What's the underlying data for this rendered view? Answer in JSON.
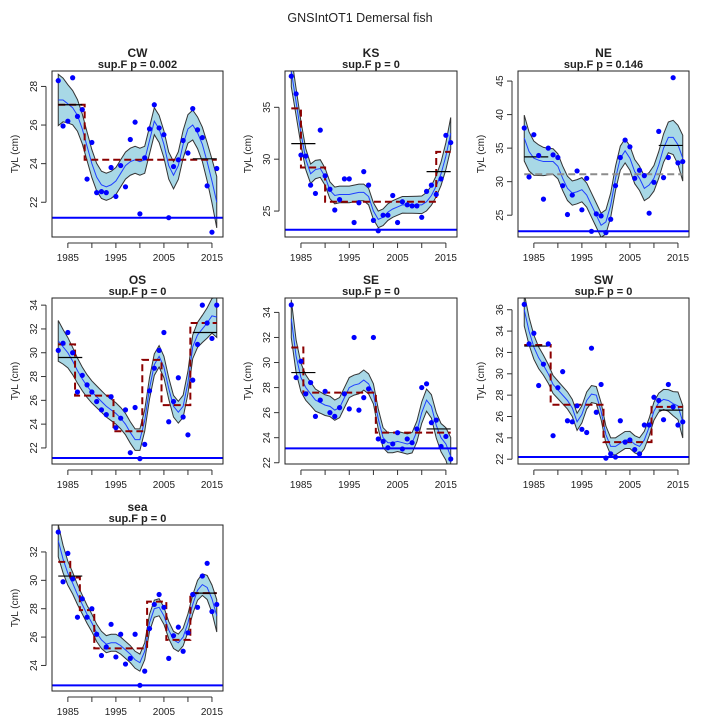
{
  "title": "GNSIntOT1 Demersal fish",
  "chart_data": [
    {
      "type": "line",
      "name": "CW",
      "subtitle": "sup.F p = 0.002",
      "ylabel": "TyL (cm)",
      "xlim": [
        1981.7,
        2017.3
      ],
      "ylim": [
        20.2,
        28.8
      ],
      "yticks": [
        22,
        24,
        26,
        28
      ],
      "xtick_labels": [
        "1985",
        "1995",
        "2005",
        "2015"
      ],
      "reference_line": 21.2,
      "points": [
        28.3,
        25.95,
        26.2,
        28.45,
        26.45,
        26.8,
        23.2,
        25.1,
        22.5,
        22.55,
        22.5,
        23.8,
        22.3,
        23.9,
        22.8,
        25.25,
        26.15,
        21.4,
        24.3,
        25.8,
        27.05,
        25.85,
        25.5,
        21.2,
        23.85,
        24.2,
        25.2,
        24.55,
        26.85,
        25.75,
        25.35,
        22.85,
        20.45,
        23.75
      ],
      "fit": [
        27.3,
        27.3,
        27.1,
        26.9,
        26.5,
        25.8,
        24.9,
        24.0,
        23.3,
        22.9,
        22.8,
        22.9,
        23.1,
        23.5,
        23.9,
        24.1,
        24.2,
        24.1,
        24.2,
        25.2,
        26.2,
        25.8,
        25.0,
        23.9,
        23.4,
        23.9,
        25.0,
        25.8,
        26.0,
        25.6,
        25.0,
        24.1,
        23.1,
        22.0
      ],
      "ci_halfwidth": 0.7,
      "breakpoint_steps": [
        [
          1983,
          1988.5,
          27.05
        ],
        [
          1988.5,
          2016,
          24.2
        ]
      ],
      "step_significant": true,
      "period_means": [
        [
          1983,
          1988,
          27.05
        ],
        [
          2011,
          2016,
          24.25
        ]
      ]
    },
    {
      "type": "line",
      "name": "KS",
      "subtitle": "sup.F p = 0",
      "ylabel": "TyL (cm)",
      "xlim": [
        1981.7,
        2017.3
      ],
      "ylim": [
        22.5,
        38.5
      ],
      "yticks": [
        25,
        30,
        35
      ],
      "xtick_labels": [
        "1985",
        "1995",
        "2005",
        "2015"
      ],
      "reference_line": 23.2,
      "points": [
        38.0,
        36.3,
        30.4,
        30.3,
        27.5,
        26.7,
        32.8,
        28.4,
        27.1,
        25.1,
        26.1,
        28.1,
        28.1,
        23.9,
        25.8,
        28.8,
        27.5,
        24.1,
        23.1,
        24.6,
        24.6,
        26.5,
        23.9,
        25.9,
        25.6,
        25.5,
        25.5,
        24.4,
        26.9,
        27.5,
        26.6,
        28.1,
        32.3,
        31.6
      ],
      "fit": [
        38.5,
        35.5,
        32.5,
        30.0,
        28.6,
        29.0,
        29.1,
        28.3,
        27.0,
        26.5,
        26.6,
        26.6,
        26.6,
        26.7,
        26.8,
        26.8,
        26.4,
        25.0,
        24.2,
        24.4,
        24.9,
        25.2,
        25.4,
        25.6,
        25.6,
        25.6,
        25.6,
        25.6,
        25.9,
        26.5,
        27.4,
        28.6,
        30.3,
        32.5
      ],
      "ci_halfwidth": 0.8,
      "breakpoint_steps": [
        [
          1983,
          1985,
          34.9
        ],
        [
          1985,
          1990,
          29.2
        ],
        [
          1990,
          2013,
          25.9
        ],
        [
          2013,
          2016,
          30.7
        ]
      ],
      "step_significant": true,
      "period_means": [
        [
          1983,
          1988,
          31.5
        ],
        [
          2011,
          2016,
          28.8
        ]
      ]
    },
    {
      "type": "line",
      "name": "NE",
      "subtitle": "sup.F p = 0.146",
      "ylabel": "TyL (cm)",
      "xlim": [
        1981.7,
        2017.3
      ],
      "ylim": [
        21.75,
        46.5
      ],
      "yticks": [
        25,
        30,
        35,
        40,
        45
      ],
      "xtick_labels": [
        "1985",
        "1995",
        "2005",
        "2015"
      ],
      "reference_line": 22.6,
      "points": [
        38.0,
        30.7,
        37.0,
        33.9,
        27.4,
        35.0,
        34.0,
        33.6,
        29.4,
        25.1,
        28.0,
        31.6,
        25.8,
        30.5,
        22.6,
        25.2,
        24.9,
        22.4,
        24.4,
        29.4,
        33.6,
        36.2,
        35.2,
        30.5,
        31.7,
        30.9,
        25.3,
        29.9,
        37.5,
        30.6,
        33.6,
        45.5,
        32.8,
        33.0
      ],
      "fit": [
        36.5,
        34.5,
        33.5,
        33.2,
        33.0,
        33.0,
        33.0,
        32.3,
        30.5,
        29.0,
        28.3,
        28.5,
        28.8,
        28.0,
        26.5,
        25.0,
        23.5,
        24.0,
        26.5,
        30.5,
        33.5,
        34.6,
        33.5,
        31.5,
        30.5,
        29.0,
        29.5,
        30.5,
        32.5,
        35.0,
        36.6,
        36.6,
        35.5,
        33.5
      ],
      "ci_halfwidth": 1.8,
      "breakpoint_steps": [
        [
          1983,
          2016,
          31.1
        ]
      ],
      "step_significant": false,
      "period_means": [
        [
          1983,
          1988,
          33.7
        ],
        [
          2011,
          2016,
          35.4
        ]
      ]
    },
    {
      "type": "line",
      "name": "OS",
      "subtitle": "sup.F p = 0",
      "ylabel": "TyL (cm)",
      "xlim": [
        1981.7,
        2017.3
      ],
      "ylim": [
        20.65,
        34.6
      ],
      "yticks": [
        22,
        24,
        26,
        28,
        30,
        32,
        34
      ],
      "xtick_labels": [
        "1985",
        "1995",
        "2005",
        "2015"
      ],
      "reference_line": 21.15,
      "points": [
        30.2,
        30.8,
        31.7,
        30.0,
        26.7,
        28.1,
        27.3,
        26.7,
        25.9,
        25.2,
        24.8,
        26.3,
        23.7,
        24.5,
        25.2,
        21.6,
        25.4,
        21.1,
        22.3,
        26.8,
        28.7,
        30.2,
        31.7,
        24.2,
        25.9,
        27.9,
        24.6,
        23.1,
        27.7,
        30.7,
        34.0,
        32.5,
        31.2,
        34.0
      ],
      "fit": [
        31.0,
        30.5,
        30.0,
        29.3,
        28.5,
        27.8,
        27.2,
        26.7,
        26.3,
        25.9,
        25.5,
        25.2,
        24.9,
        24.5,
        24.0,
        23.3,
        22.7,
        22.7,
        24.3,
        27.0,
        29.0,
        29.7,
        28.8,
        27.0,
        25.5,
        25.0,
        25.5,
        27.5,
        30.5,
        31.5,
        32.0,
        32.5,
        33.1,
        33.0
      ],
      "ci_halfwidth": 0.9,
      "breakpoint_steps": [
        [
          1983,
          1986.5,
          30.7
        ],
        [
          1986.5,
          1994.5,
          26.4
        ],
        [
          1994.5,
          2000.5,
          23.4
        ],
        [
          2000.5,
          2004.5,
          29.4
        ],
        [
          2004.5,
          2010.5,
          25.6
        ],
        [
          2010.5,
          2016,
          32.5
        ]
      ],
      "step_significant": true,
      "period_means": [
        [
          1983,
          1988,
          29.6
        ],
        [
          2011,
          2016,
          31.7
        ]
      ]
    },
    {
      "type": "line",
      "name": "SE",
      "subtitle": "sup.F p = 0",
      "ylabel": "TyL (cm)",
      "xlim": [
        1981.7,
        2017.3
      ],
      "ylim": [
        21.9,
        35.15
      ],
      "yticks": [
        22,
        24,
        26,
        28,
        30,
        32,
        34
      ],
      "xtick_labels": [
        "1985",
        "1995",
        "2005",
        "2015"
      ],
      "reference_line": 23.15,
      "points": [
        34.6,
        28.8,
        30.1,
        27.5,
        28.4,
        25.7,
        27.0,
        27.7,
        26.0,
        25.7,
        26.4,
        27.5,
        26.3,
        32.0,
        26.2,
        27.2,
        27.9,
        32.0,
        23.9,
        23.7,
        23.2,
        23.5,
        24.4,
        23.1,
        23.9,
        23.6,
        24.7,
        28.0,
        28.3,
        25.2,
        25.4,
        23.3,
        24.1,
        22.3
      ],
      "fit": [
        33.5,
        30.5,
        28.8,
        28.0,
        27.5,
        27.0,
        26.8,
        26.6,
        26.5,
        26.2,
        26.4,
        27.2,
        28.0,
        28.2,
        28.3,
        28.6,
        28.3,
        27.5,
        25.5,
        24.0,
        23.6,
        23.6,
        23.7,
        23.6,
        23.5,
        23.6,
        24.5,
        26.0,
        27.0,
        26.5,
        25.0,
        24.0,
        23.5,
        22.5
      ],
      "ci_halfwidth": 0.8,
      "breakpoint_steps": [
        [
          1983,
          1985.5,
          31.2
        ],
        [
          1985.5,
          2000.5,
          27.6
        ],
        [
          2000.5,
          2016,
          24.4
        ]
      ],
      "step_significant": true,
      "period_means": [
        [
          1983,
          1988,
          29.2
        ],
        [
          2011,
          2016,
          24.7
        ]
      ]
    },
    {
      "type": "line",
      "name": "SW",
      "subtitle": "sup.F p = 0",
      "ylabel": "TyL (cm)",
      "xlim": [
        1981.7,
        2017.3
      ],
      "ylim": [
        21.55,
        37.1
      ],
      "yticks": [
        22,
        24,
        26,
        28,
        30,
        32,
        34,
        36
      ],
      "xtick_labels": [
        "1985",
        "1995",
        "2005",
        "2015"
      ],
      "reference_line": 22.2,
      "points": [
        36.5,
        32.8,
        33.8,
        28.9,
        30.9,
        32.8,
        24.2,
        28.7,
        30.2,
        25.6,
        25.5,
        27.0,
        24.8,
        24.5,
        32.4,
        26.4,
        29.0,
        22.1,
        22.5,
        22.2,
        25.6,
        23.6,
        23.8,
        22.9,
        22.5,
        25.2,
        25.2,
        27.8,
        27.5,
        25.7,
        29.0,
        26.9,
        25.2,
        25.5
      ],
      "fit": [
        36.0,
        34.0,
        32.5,
        31.5,
        30.8,
        30.0,
        29.0,
        28.5,
        28.0,
        27.5,
        26.8,
        25.5,
        26.2,
        27.5,
        28.1,
        28.0,
        26.5,
        24.3,
        23.2,
        23.2,
        23.5,
        23.8,
        23.8,
        23.4,
        23.2,
        23.8,
        25.0,
        26.5,
        27.3,
        27.6,
        27.5,
        27.2,
        27.0,
        25.5
      ],
      "ci_halfwidth": 0.8,
      "breakpoint_steps": [
        [
          1983,
          1988.5,
          32.7
        ],
        [
          1988.5,
          1999.5,
          27.1
        ],
        [
          1999.5,
          2009.5,
          23.6
        ],
        [
          2009.5,
          2016,
          26.9
        ]
      ],
      "step_significant": true,
      "period_means": [
        [
          1983,
          1988,
          32.6
        ],
        [
          2011,
          2016,
          26.6
        ]
      ]
    },
    {
      "type": "line",
      "name": "sea",
      "subtitle": "sup.F p = 0",
      "ylabel": "TyL (cm)",
      "xlim": [
        1981.7,
        2017.3
      ],
      "ylim": [
        22.2,
        33.9
      ],
      "yticks": [
        24,
        26,
        28,
        30,
        32
      ],
      "xtick_labels": [
        "1985",
        "1995",
        "2005",
        "2015"
      ],
      "reference_line": 22.6,
      "points": [
        33.4,
        29.9,
        31.9,
        30.1,
        27.4,
        28.7,
        27.4,
        28.0,
        26.2,
        24.7,
        25.3,
        26.9,
        24.6,
        26.2,
        24.1,
        24.5,
        26.2,
        22.6,
        23.6,
        26.6,
        28.3,
        29.0,
        28.1,
        24.5,
        26.1,
        26.7,
        25.0,
        26.3,
        29.0,
        28.1,
        30.3,
        31.2,
        27.8,
        28.3
      ],
      "fit": [
        32.8,
        31.5,
        30.5,
        29.8,
        29.0,
        28.3,
        27.6,
        27.0,
        26.3,
        25.8,
        25.5,
        25.6,
        25.6,
        25.4,
        25.1,
        24.8,
        24.4,
        24.2,
        25.0,
        27.0,
        28.0,
        28.1,
        27.5,
        26.5,
        25.8,
        25.6,
        26.0,
        27.0,
        28.3,
        29.3,
        29.7,
        29.5,
        28.7,
        27.5
      ],
      "ci_halfwidth": 0.6,
      "breakpoint_steps": [
        [
          1983,
          1985.5,
          31.3
        ],
        [
          1985.5,
          1987.5,
          30.2
        ],
        [
          1987.5,
          1990.5,
          27.9
        ],
        [
          1990.5,
          2001.5,
          25.2
        ],
        [
          2001.5,
          2005.5,
          28.5
        ],
        [
          2005.5,
          2010.5,
          25.8
        ],
        [
          2010.5,
          2016,
          29.1
        ]
      ],
      "step_significant": true,
      "period_means": [
        [
          1983,
          1988,
          30.3
        ],
        [
          2011,
          2016,
          29.1
        ]
      ]
    }
  ],
  "years_start": 1983,
  "colors": {
    "points": "#0000ff",
    "fit": "#1f3fff",
    "band": "#a8d8e6",
    "step": "#8b0000",
    "step_ns": "#8c8c8c",
    "reference": "#0000ff",
    "mean": "#000000"
  }
}
